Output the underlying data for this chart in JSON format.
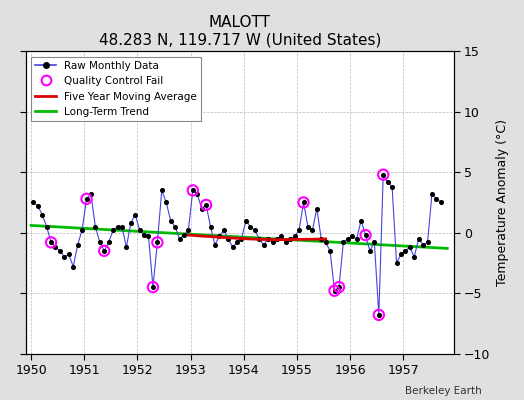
{
  "title": "MALOTT",
  "subtitle": "48.283 N, 119.717 W (United States)",
  "ylabel": "Temperature Anomaly (°C)",
  "credit": "Berkeley Earth",
  "xlim": [
    1949.9,
    1957.95
  ],
  "ylim": [
    -10,
    15
  ],
  "yticks": [
    -10,
    -5,
    0,
    5,
    10,
    15
  ],
  "background_color": "#e0e0e0",
  "plot_bg_color": "#ffffff",
  "raw_color": "#4444dd",
  "raw_marker_color": "#000000",
  "moving_avg_color": "#dd0000",
  "trend_color": "#00bb00",
  "qc_fail_color": "#ff00ff",
  "raw_data": [
    [
      1950.042,
      2.5
    ],
    [
      1950.125,
      2.2
    ],
    [
      1950.208,
      1.5
    ],
    [
      1950.292,
      0.5
    ],
    [
      1950.375,
      -0.8
    ],
    [
      1950.458,
      -1.2
    ],
    [
      1950.542,
      -1.5
    ],
    [
      1950.625,
      -2.0
    ],
    [
      1950.708,
      -1.8
    ],
    [
      1950.792,
      -2.8
    ],
    [
      1950.875,
      -1.0
    ],
    [
      1950.958,
      0.2
    ],
    [
      1951.042,
      2.8
    ],
    [
      1951.125,
      3.2
    ],
    [
      1951.208,
      0.5
    ],
    [
      1951.292,
      -0.8
    ],
    [
      1951.375,
      -1.5
    ],
    [
      1951.458,
      -0.8
    ],
    [
      1951.542,
      0.2
    ],
    [
      1951.625,
      0.5
    ],
    [
      1951.708,
      0.5
    ],
    [
      1951.792,
      -1.2
    ],
    [
      1951.875,
      0.8
    ],
    [
      1951.958,
      1.5
    ],
    [
      1952.042,
      0.2
    ],
    [
      1952.125,
      -0.2
    ],
    [
      1952.208,
      -0.3
    ],
    [
      1952.292,
      -4.5
    ],
    [
      1952.375,
      -0.8
    ],
    [
      1952.458,
      3.5
    ],
    [
      1952.542,
      2.5
    ],
    [
      1952.625,
      1.0
    ],
    [
      1952.708,
      0.5
    ],
    [
      1952.792,
      -0.5
    ],
    [
      1952.875,
      -0.2
    ],
    [
      1952.958,
      0.2
    ],
    [
      1953.042,
      3.5
    ],
    [
      1953.125,
      3.2
    ],
    [
      1953.208,
      2.0
    ],
    [
      1953.292,
      2.3
    ],
    [
      1953.375,
      0.5
    ],
    [
      1953.458,
      -1.0
    ],
    [
      1953.542,
      -0.3
    ],
    [
      1953.625,
      0.2
    ],
    [
      1953.708,
      -0.5
    ],
    [
      1953.792,
      -1.2
    ],
    [
      1953.875,
      -0.8
    ],
    [
      1953.958,
      -0.5
    ],
    [
      1954.042,
      1.0
    ],
    [
      1954.125,
      0.5
    ],
    [
      1954.208,
      0.2
    ],
    [
      1954.292,
      -0.5
    ],
    [
      1954.375,
      -1.0
    ],
    [
      1954.458,
      -0.5
    ],
    [
      1954.542,
      -0.8
    ],
    [
      1954.625,
      -0.5
    ],
    [
      1954.708,
      -0.3
    ],
    [
      1954.792,
      -0.8
    ],
    [
      1954.875,
      -0.5
    ],
    [
      1954.958,
      -0.3
    ],
    [
      1955.042,
      0.2
    ],
    [
      1955.125,
      2.5
    ],
    [
      1955.208,
      0.5
    ],
    [
      1955.292,
      0.2
    ],
    [
      1955.375,
      2.0
    ],
    [
      1955.458,
      -0.5
    ],
    [
      1955.542,
      -0.8
    ],
    [
      1955.625,
      -1.5
    ],
    [
      1955.708,
      -4.8
    ],
    [
      1955.792,
      -4.5
    ],
    [
      1955.875,
      -0.8
    ],
    [
      1955.958,
      -0.5
    ],
    [
      1956.042,
      -0.3
    ],
    [
      1956.125,
      -0.5
    ],
    [
      1956.208,
      1.0
    ],
    [
      1956.292,
      -0.2
    ],
    [
      1956.375,
      -1.5
    ],
    [
      1956.458,
      -0.8
    ],
    [
      1956.542,
      -6.8
    ],
    [
      1956.625,
      4.8
    ],
    [
      1956.708,
      4.2
    ],
    [
      1956.792,
      3.8
    ],
    [
      1956.875,
      -2.5
    ],
    [
      1956.958,
      -1.8
    ],
    [
      1957.042,
      -1.5
    ],
    [
      1957.125,
      -1.2
    ],
    [
      1957.208,
      -2.0
    ],
    [
      1957.292,
      -0.5
    ],
    [
      1957.375,
      -1.0
    ],
    [
      1957.458,
      -0.8
    ],
    [
      1957.542,
      3.2
    ],
    [
      1957.625,
      2.8
    ],
    [
      1957.708,
      2.5
    ]
  ],
  "qc_fail_points": [
    [
      1950.375,
      -0.8
    ],
    [
      1951.042,
      2.8
    ],
    [
      1951.375,
      -1.5
    ],
    [
      1952.292,
      -4.5
    ],
    [
      1952.375,
      -0.8
    ],
    [
      1953.042,
      3.5
    ],
    [
      1953.292,
      2.3
    ],
    [
      1955.125,
      2.5
    ],
    [
      1955.708,
      -4.8
    ],
    [
      1955.792,
      -4.5
    ],
    [
      1956.292,
      -0.2
    ],
    [
      1956.542,
      -6.8
    ],
    [
      1956.625,
      4.8
    ]
  ],
  "moving_avg": [
    [
      1952.958,
      -0.2
    ],
    [
      1953.042,
      -0.22
    ],
    [
      1953.125,
      -0.25
    ],
    [
      1953.208,
      -0.28
    ],
    [
      1953.292,
      -0.3
    ],
    [
      1953.375,
      -0.32
    ],
    [
      1953.458,
      -0.35
    ],
    [
      1953.542,
      -0.38
    ],
    [
      1953.625,
      -0.4
    ],
    [
      1953.708,
      -0.42
    ],
    [
      1953.792,
      -0.44
    ],
    [
      1953.875,
      -0.46
    ],
    [
      1953.958,
      -0.48
    ],
    [
      1954.042,
      -0.5
    ],
    [
      1954.125,
      -0.52
    ],
    [
      1954.208,
      -0.53
    ],
    [
      1954.292,
      -0.55
    ],
    [
      1954.375,
      -0.56
    ],
    [
      1954.458,
      -0.57
    ],
    [
      1954.542,
      -0.58
    ],
    [
      1954.625,
      -0.58
    ],
    [
      1954.708,
      -0.58
    ],
    [
      1954.792,
      -0.57
    ],
    [
      1954.875,
      -0.57
    ],
    [
      1954.958,
      -0.56
    ],
    [
      1955.042,
      -0.55
    ],
    [
      1955.125,
      -0.55
    ],
    [
      1955.208,
      -0.54
    ],
    [
      1955.292,
      -0.54
    ],
    [
      1955.375,
      -0.53
    ],
    [
      1955.458,
      -0.53
    ],
    [
      1955.542,
      -0.52
    ]
  ],
  "trend_line": [
    [
      1950.0,
      0.6
    ],
    [
      1957.83,
      -1.3
    ]
  ]
}
